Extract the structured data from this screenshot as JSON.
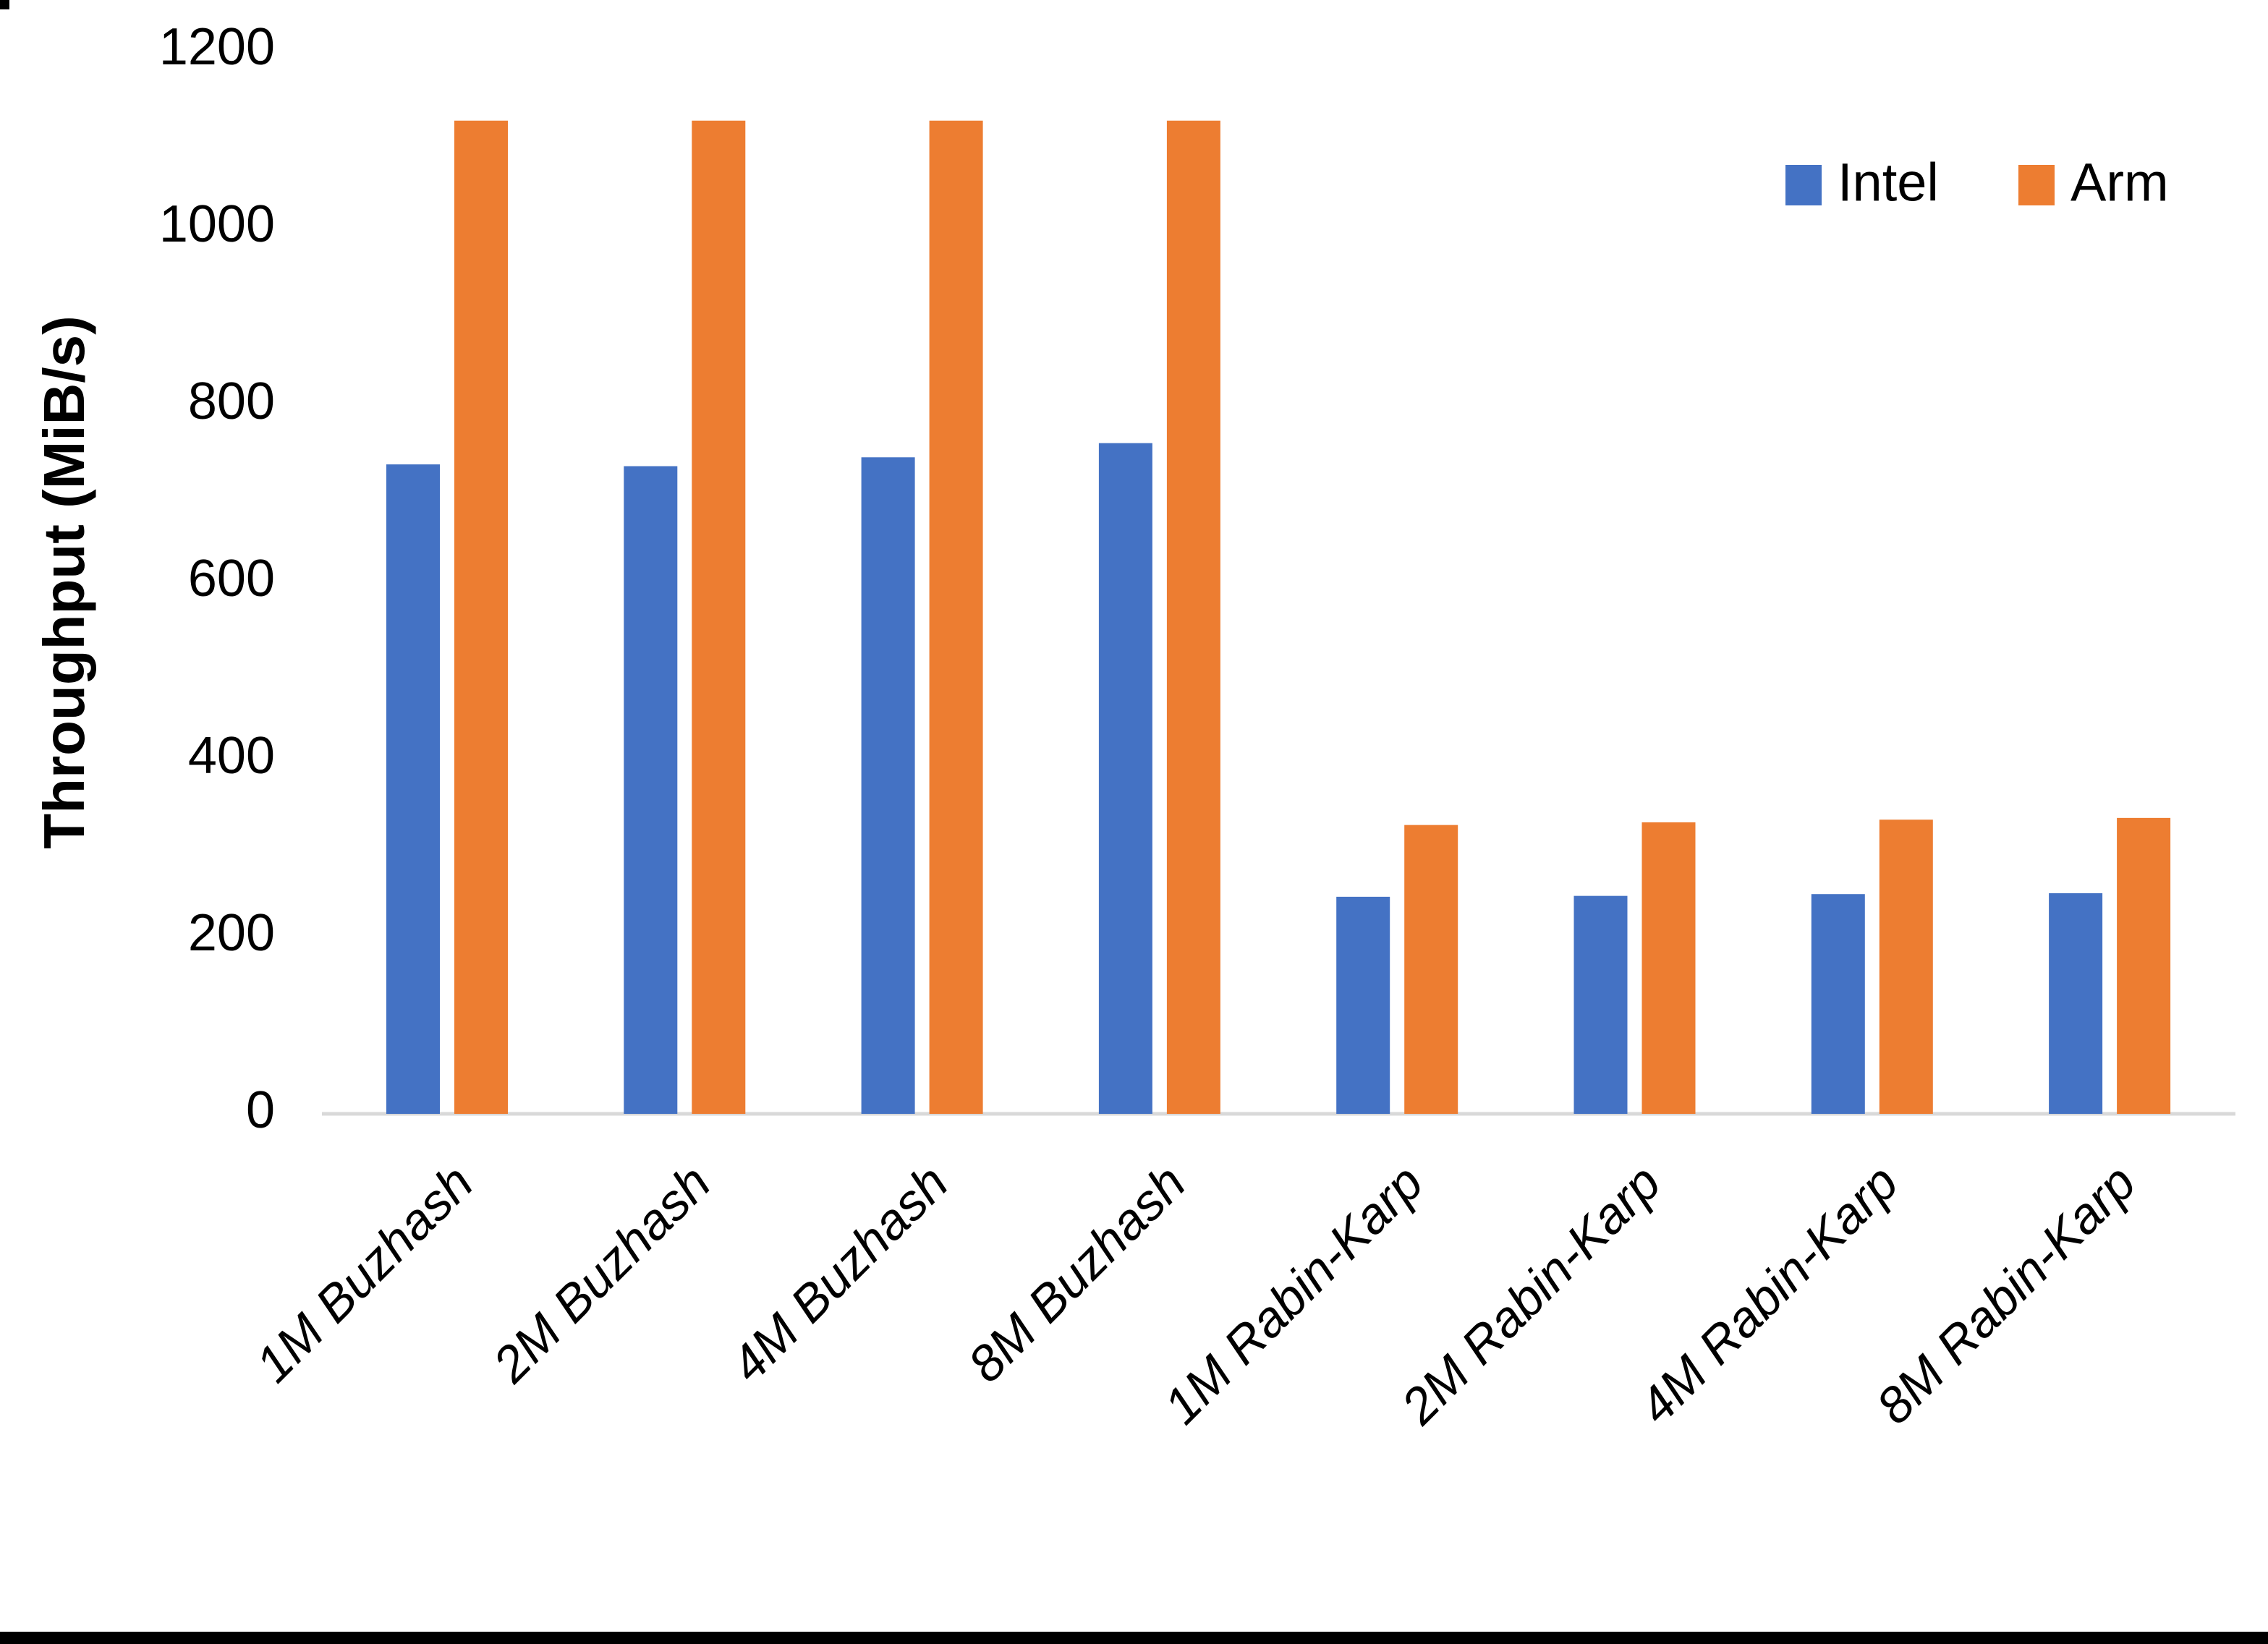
{
  "figure": {
    "background": "#FFFFFF",
    "bottom_border_color": "#000000",
    "corner_mark_color": "#000000"
  },
  "chart_data": {
    "type": "bar",
    "title": "",
    "xlabel": "",
    "ylabel": "Throughput (MiB/s)",
    "categories": [
      "1M Buzhash",
      "2M Buzhash",
      "4M Buzhash",
      "8M Buzhash",
      "1M Rabin-Karp",
      "2M Rabin-Karp",
      "4M Rabin-Karp",
      "8M Rabin-Karp"
    ],
    "series": [
      {
        "name": "Intel",
        "color": "#4472C4",
        "values": [
          733,
          731,
          741,
          757,
          245,
          246,
          248,
          249
        ]
      },
      {
        "name": "Arm",
        "color": "#ED7D31",
        "values": [
          1121,
          1121,
          1121,
          1121,
          326,
          329,
          332,
          334
        ]
      }
    ],
    "ylim": [
      0,
      1200
    ],
    "yticks": [
      0,
      200,
      400,
      600,
      800,
      1000,
      1200
    ],
    "grid": false,
    "legend_position": "top-right",
    "axis_line_color": "#D9D9D9",
    "text_color": "#000000"
  }
}
